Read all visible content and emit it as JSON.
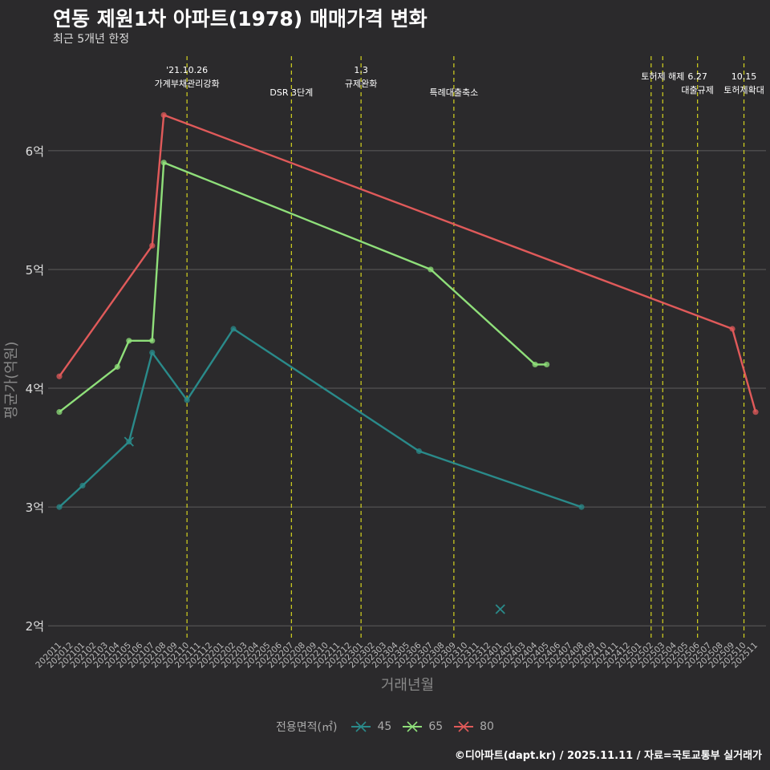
{
  "chart_data": {
    "type": "line",
    "title": "연동 제원1차 아파트(1978) 매매가격 변화",
    "subtitle": "최근 5개년 한정",
    "xlabel": "거래년월",
    "ylabel": "평균가(억원)",
    "legend_title": "전용면적(㎡)",
    "caption": "©디아파트(dapt.kr) / 2025.11.11 / 자료=국토교통부 실거래가",
    "x_ticks": [
      "202011",
      "202012",
      "202101",
      "202102",
      "202103",
      "202104",
      "202105",
      "202106",
      "202107",
      "202108",
      "202109",
      "202110",
      "202111",
      "202112",
      "202201",
      "202202",
      "202203",
      "202204",
      "202205",
      "202206",
      "202207",
      "202208",
      "202209",
      "202210",
      "202211",
      "202212",
      "202301",
      "202302",
      "202303",
      "202304",
      "202305",
      "202306",
      "202307",
      "202308",
      "202309",
      "202310",
      "202311",
      "202312",
      "202401",
      "202402",
      "202403",
      "202404",
      "202405",
      "202406",
      "202407",
      "202408",
      "202409",
      "202410",
      "202411",
      "202412",
      "202501",
      "202502",
      "202503",
      "202504",
      "202505",
      "202506",
      "202507",
      "202508",
      "202509",
      "202510",
      "202511"
    ],
    "y_ticks": [
      2,
      3,
      4,
      5,
      6
    ],
    "y_tick_labels": [
      "2억",
      "3억",
      "4억",
      "5억",
      "6억"
    ],
    "ylim": [
      1.9,
      6.85
    ],
    "series": [
      {
        "name": "45",
        "color": "#2a8a8a",
        "points": [
          [
            "202011",
            3.0
          ],
          [
            "202101",
            3.18
          ],
          [
            "202105",
            3.55
          ],
          [
            "202107",
            4.3
          ],
          [
            "202110",
            3.9
          ],
          [
            "202202",
            4.5
          ],
          [
            "202306",
            3.47
          ],
          [
            "202408",
            3.0
          ]
        ],
        "cross_points": [
          [
            "202105",
            3.55
          ],
          [
            "202401",
            2.14
          ]
        ]
      },
      {
        "name": "65",
        "color": "#8fdf7a",
        "points": [
          [
            "202011",
            3.8
          ],
          [
            "202104",
            4.18
          ],
          [
            "202105",
            4.4
          ],
          [
            "202107",
            4.4
          ],
          [
            "202108",
            5.9
          ],
          [
            "202307",
            5.0
          ],
          [
            "202404",
            4.2
          ],
          [
            "202405",
            4.2
          ]
        ]
      },
      {
        "name": "80",
        "color": "#e05a5a",
        "points": [
          [
            "202011",
            4.1
          ],
          [
            "202107",
            5.2
          ],
          [
            "202108",
            6.3
          ],
          [
            "202509",
            4.5
          ],
          [
            "202511",
            3.8
          ]
        ]
      }
    ],
    "annotations": [
      {
        "x": "202110",
        "lines": [
          "'21.10.26",
          "가계부채관리강화"
        ],
        "row": 0
      },
      {
        "x": "202207",
        "lines": [
          "DSR 3단계"
        ],
        "row": 2
      },
      {
        "x": "202301",
        "lines": [
          "1.3",
          "규제완화"
        ],
        "row": 0
      },
      {
        "x": "202309",
        "lines": [
          "특례대출축소"
        ],
        "row": 2
      },
      {
        "x": "202502",
        "lines": [],
        "row": 1
      },
      {
        "x": "202503",
        "lines": [
          "토허제 해제"
        ],
        "row": 1
      },
      {
        "x": "202506",
        "lines": [
          "6.27",
          "대출규제"
        ],
        "row": 1
      },
      {
        "x": "202510",
        "lines": [
          "10.15",
          "토허제확대"
        ],
        "row": 1
      }
    ]
  }
}
